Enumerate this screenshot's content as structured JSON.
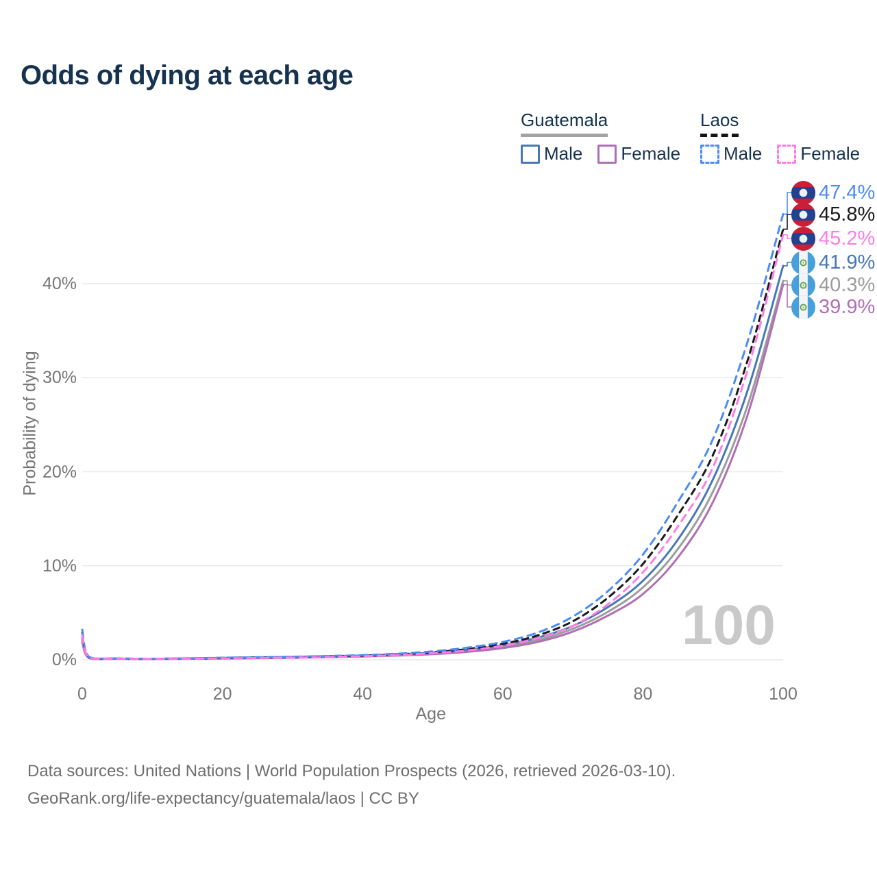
{
  "title": "Odds of dying at each age",
  "watermark": "100",
  "footer": {
    "line1": "Data sources: United Nations | World Population Prospects (2026, retrieved 2026-03-10).",
    "line2": "GeoRank.org/life-expectancy/guatemala/laos | CC BY"
  },
  "legend": {
    "groups": [
      {
        "country": "Guatemala",
        "line_style": "solid",
        "underline_color": "#a3a3a3",
        "items": [
          {
            "label": "Male",
            "color": "#4678b4"
          },
          {
            "label": "Female",
            "color": "#b06fb5"
          }
        ]
      },
      {
        "country": "Laos",
        "line_style": "dashed",
        "underline_color": "#141414",
        "items": [
          {
            "label": "Male",
            "color": "#4b8bf7"
          },
          {
            "label": "Female",
            "color": "#ff7ce6"
          }
        ]
      }
    ]
  },
  "chart_data": {
    "type": "line",
    "title": "Odds of dying at each age",
    "xlabel": "Age",
    "ylabel": "Probability of dying",
    "xlim": [
      0,
      100
    ],
    "ylim": [
      0,
      48
    ],
    "grid": "horizontal",
    "x_ticks": [
      0,
      20,
      40,
      60,
      80,
      100
    ],
    "y_ticks": [
      {
        "label": "0%",
        "value": 0
      },
      {
        "label": "10%",
        "value": 10
      },
      {
        "label": "20%",
        "value": 20
      },
      {
        "label": "30%",
        "value": 30
      },
      {
        "label": "40%",
        "value": 40
      }
    ],
    "ages": [
      0,
      1,
      5,
      10,
      15,
      20,
      25,
      30,
      35,
      40,
      45,
      50,
      55,
      60,
      65,
      70,
      75,
      80,
      85,
      90,
      95,
      100
    ],
    "series": [
      {
        "id": "laos_male",
        "name": "Laos Male",
        "country": "Laos",
        "sex": "Male",
        "style": "dashed",
        "color": "#4b8bf7",
        "dash": "11 8",
        "end_label": "47.4%",
        "values": [
          3.2,
          0.3,
          0.15,
          0.12,
          0.15,
          0.22,
          0.28,
          0.33,
          0.4,
          0.5,
          0.65,
          0.9,
          1.3,
          1.9,
          2.9,
          4.6,
          7.3,
          11.2,
          16.8,
          23.5,
          34.0,
          47.4
        ]
      },
      {
        "id": "laos_both",
        "name": "Laos Both sexes",
        "country": "Laos",
        "sex": "Both",
        "style": "dashed",
        "color": "#1a1a1a",
        "dash": "9 7",
        "end_label": "45.8%",
        "values": [
          2.9,
          0.27,
          0.13,
          0.11,
          0.13,
          0.19,
          0.24,
          0.29,
          0.35,
          0.44,
          0.58,
          0.8,
          1.15,
          1.7,
          2.6,
          4.1,
          6.6,
          10.2,
          15.4,
          21.8,
          32.0,
          45.8
        ]
      },
      {
        "id": "laos_female",
        "name": "Laos Female",
        "country": "Laos",
        "sex": "Female",
        "style": "dashed",
        "color": "#ff7ce6",
        "dash": "11 8",
        "end_label": "45.2%",
        "values": [
          2.6,
          0.24,
          0.12,
          0.1,
          0.11,
          0.15,
          0.19,
          0.24,
          0.3,
          0.38,
          0.5,
          0.7,
          1.0,
          1.5,
          2.3,
          3.6,
          5.9,
          9.3,
          14.2,
          20.5,
          31.0,
          45.2
        ]
      },
      {
        "id": "guat_male",
        "name": "Guatemala Male",
        "country": "Guatemala",
        "sex": "Male",
        "style": "solid",
        "color": "#4678b4",
        "dash": null,
        "end_label": "41.9%",
        "values": [
          2.3,
          0.22,
          0.12,
          0.1,
          0.14,
          0.2,
          0.26,
          0.31,
          0.37,
          0.45,
          0.57,
          0.76,
          1.05,
          1.55,
          2.35,
          3.6,
          5.6,
          8.4,
          12.8,
          19.2,
          28.8,
          41.9
        ]
      },
      {
        "id": "guat_both",
        "name": "Guatemala Both sexes",
        "country": "Guatemala",
        "sex": "Both",
        "style": "solid",
        "color": "#9c9c9c",
        "dash": null,
        "end_label": "40.3%",
        "values": [
          2.1,
          0.2,
          0.11,
          0.09,
          0.12,
          0.17,
          0.22,
          0.27,
          0.33,
          0.4,
          0.51,
          0.68,
          0.95,
          1.4,
          2.1,
          3.3,
          5.1,
          7.7,
          11.8,
          17.9,
          27.2,
          40.3
        ]
      },
      {
        "id": "guat_female",
        "name": "Guatemala Female",
        "country": "Guatemala",
        "sex": "Female",
        "style": "solid",
        "color": "#b06fb5",
        "dash": null,
        "end_label": "39.9%",
        "values": [
          1.9,
          0.18,
          0.1,
          0.08,
          0.1,
          0.13,
          0.17,
          0.22,
          0.28,
          0.35,
          0.45,
          0.6,
          0.85,
          1.25,
          1.9,
          3.0,
          4.7,
          7.0,
          10.9,
          16.8,
          26.2,
          39.9
        ]
      }
    ],
    "end_labels": [
      {
        "value": "47.4%",
        "color": "#4b8bf7",
        "flag": "laos",
        "series": "laos_male"
      },
      {
        "value": "45.8%",
        "color": "#1a1a1a",
        "flag": "laos",
        "series": "laos_both"
      },
      {
        "value": "45.2%",
        "color": "#ff7ce6",
        "flag": "laos",
        "series": "laos_female"
      },
      {
        "value": "41.9%",
        "color": "#4678b4",
        "flag": "guatemala",
        "series": "guat_male"
      },
      {
        "value": "40.3%",
        "color": "#9c9c9c",
        "flag": "guatemala",
        "series": "guat_both"
      },
      {
        "value": "39.9%",
        "color": "#b06fb5",
        "flag": "guatemala",
        "series": "guat_female"
      }
    ],
    "flag_colors": {
      "laos": {
        "red": "#cd1e37",
        "blue": "#234191",
        "disc": "#eef0f4"
      },
      "guatemala": {
        "blue": "#46a0dc",
        "white": "#f4f4f4",
        "emblem": "#6ca04e"
      }
    }
  }
}
